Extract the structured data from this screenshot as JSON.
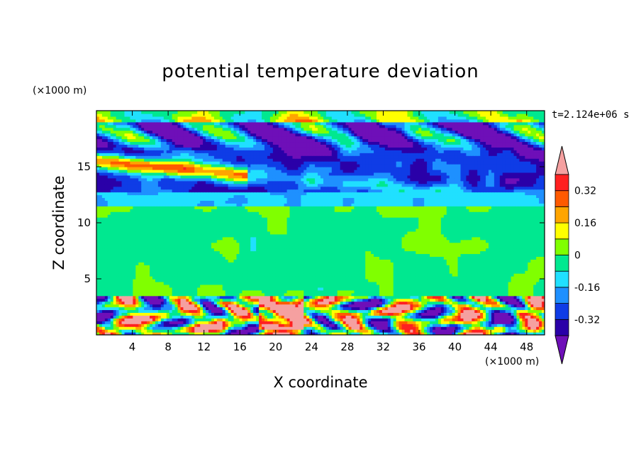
{
  "chart_data": {
    "type": "heatmap",
    "title": "potential temperature deviation",
    "xlabel": "X coordinate",
    "ylabel": "Z coordinate",
    "x_unit": "(×1000 m)",
    "y_unit": "(×1000 m)",
    "time_label": "t=2.124e+06 s",
    "x_range": [
      0,
      50
    ],
    "y_range": [
      0,
      20
    ],
    "x_ticks": [
      4,
      8,
      12,
      16,
      20,
      24,
      28,
      32,
      36,
      40,
      44,
      48
    ],
    "y_ticks": [
      5,
      10,
      15
    ],
    "colorbar": {
      "extend": "both",
      "tick_labels": [
        "0.32",
        "0.16",
        "0",
        "-0.16",
        "-0.32"
      ],
      "tick_values": [
        0.32,
        0.16,
        0,
        -0.16,
        -0.32
      ],
      "levels": [
        -0.4,
        -0.32,
        -0.24,
        -0.16,
        -0.08,
        0,
        0.08,
        0.16,
        0.24,
        0.32,
        0.4
      ],
      "colors": [
        "#6e0fb8",
        "#2a00a8",
        "#0f3ce6",
        "#1e90ff",
        "#20e0ff",
        "#00e890",
        "#80ff00",
        "#ffff00",
        "#ffa500",
        "#ff5a00",
        "#ff2020",
        "#f5a0a0"
      ]
    }
  }
}
